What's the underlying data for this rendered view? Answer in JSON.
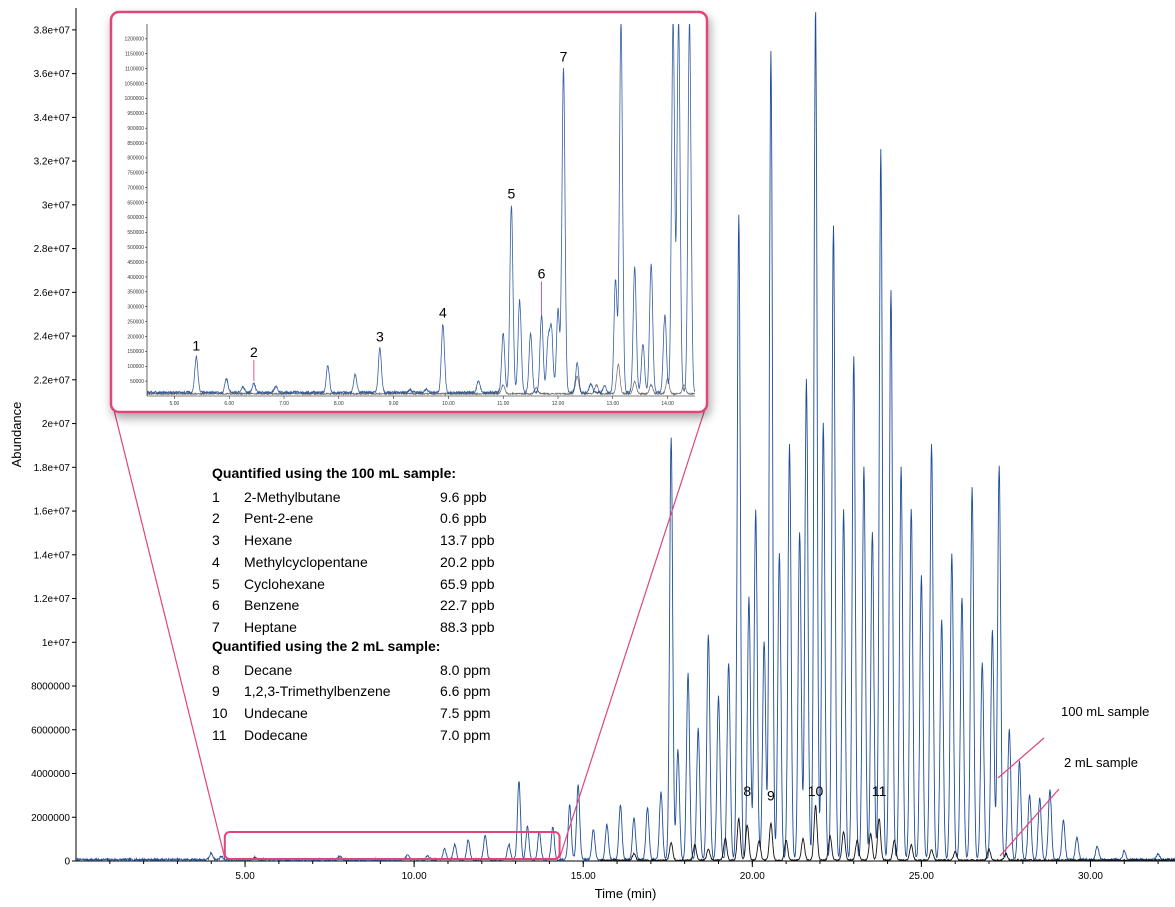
{
  "colors": {
    "sample_100mL": "#1f4e99",
    "sample_2mL": "#111111",
    "highlight": "#e0457b",
    "inset_series_b": "#444444"
  },
  "chart_data": {
    "type": "line",
    "xlabel": "Time (min)",
    "ylabel": "Abundance",
    "xlim": [
      0,
      32.5
    ],
    "ylim": [
      0,
      39000000
    ],
    "x_ticks": [
      5,
      10,
      15,
      20,
      25,
      30
    ],
    "x_tick_labels": [
      "5.00",
      "10.00",
      "15.00",
      "20.00",
      "25.00",
      "30.00"
    ],
    "y_ticks": [
      0,
      2000000,
      4000000,
      6000000,
      8000000,
      10000000,
      12000000,
      14000000,
      16000000,
      18000000,
      20000000,
      22000000,
      24000000,
      26000000,
      28000000,
      30000000,
      32000000,
      34000000,
      36000000,
      38000000
    ],
    "y_tick_labels": [
      "0",
      "2000000",
      "4000000",
      "6000000",
      "8000000",
      "1e+07",
      "1.2e+07",
      "1.4e+07",
      "1.6e+07",
      "1.8e+07",
      "2e+07",
      "2.2e+07",
      "2.4e+07",
      "2.6e+07",
      "2.8e+07",
      "3e+07",
      "3.2e+07",
      "3.4e+07",
      "3.6e+07",
      "3.8e+07"
    ],
    "series": [
      {
        "name": "100 mL sample",
        "peaks": [
          [
            4.0,
            300000
          ],
          [
            4.3,
            150000
          ],
          [
            5.3,
            120000
          ],
          [
            7.8,
            160000
          ],
          [
            9.8,
            200000
          ],
          [
            10.4,
            180000
          ],
          [
            10.9,
            500000
          ],
          [
            11.2,
            700000
          ],
          [
            11.6,
            900000
          ],
          [
            12.1,
            1100000
          ],
          [
            12.8,
            700000
          ],
          [
            13.1,
            3600000
          ],
          [
            13.35,
            1500000
          ],
          [
            13.7,
            1300000
          ],
          [
            14.1,
            1500000
          ],
          [
            14.6,
            2500000
          ],
          [
            14.85,
            3400000
          ],
          [
            15.3,
            1400000
          ],
          [
            15.7,
            1600000
          ],
          [
            16.1,
            2500000
          ],
          [
            16.5,
            1900000
          ],
          [
            16.9,
            2400000
          ],
          [
            17.3,
            3100000
          ],
          [
            17.6,
            19300000
          ],
          [
            17.8,
            5000000
          ],
          [
            18.1,
            8500000
          ],
          [
            18.4,
            6000000
          ],
          [
            18.7,
            10300000
          ],
          [
            19.0,
            7500000
          ],
          [
            19.3,
            9000000
          ],
          [
            19.6,
            29500000
          ],
          [
            19.9,
            12000000
          ],
          [
            20.1,
            16000000
          ],
          [
            20.35,
            10000000
          ],
          [
            20.55,
            37000000
          ],
          [
            20.8,
            14000000
          ],
          [
            21.1,
            19000000
          ],
          [
            21.4,
            15000000
          ],
          [
            21.6,
            22000000
          ],
          [
            21.87,
            39000000
          ],
          [
            22.1,
            20000000
          ],
          [
            22.4,
            29000000
          ],
          [
            22.7,
            16000000
          ],
          [
            23.0,
            23000000
          ],
          [
            23.3,
            18000000
          ],
          [
            23.55,
            15000000
          ],
          [
            23.8,
            32500000
          ],
          [
            24.1,
            26000000
          ],
          [
            24.4,
            18000000
          ],
          [
            24.7,
            16000000
          ],
          [
            25.0,
            13000000
          ],
          [
            25.3,
            19000000
          ],
          [
            25.6,
            11000000
          ],
          [
            25.9,
            14000000
          ],
          [
            26.2,
            12000000
          ],
          [
            26.5,
            17000000
          ],
          [
            26.8,
            9000000
          ],
          [
            27.1,
            10500000
          ],
          [
            27.3,
            18000000
          ],
          [
            27.6,
            6000000
          ],
          [
            27.9,
            4500000
          ],
          [
            28.2,
            3000000
          ],
          [
            28.5,
            2800000
          ],
          [
            28.8,
            3200000
          ],
          [
            29.2,
            1800000
          ],
          [
            29.6,
            1000000
          ],
          [
            30.2,
            600000
          ],
          [
            31.0,
            400000
          ],
          [
            32.0,
            250000
          ]
        ]
      },
      {
        "name": "2 mL sample",
        "peaks": [
          [
            16.5,
            300000
          ],
          [
            17.6,
            800000
          ],
          [
            18.3,
            700000
          ],
          [
            18.7,
            500000
          ],
          [
            19.2,
            1000000
          ],
          [
            19.6,
            1900000
          ],
          [
            19.85,
            1600000
          ],
          [
            20.2,
            900000
          ],
          [
            20.55,
            1700000
          ],
          [
            21.0,
            900000
          ],
          [
            21.5,
            1000000
          ],
          [
            21.87,
            2500000
          ],
          [
            22.3,
            1100000
          ],
          [
            22.7,
            1300000
          ],
          [
            23.1,
            900000
          ],
          [
            23.5,
            1200000
          ],
          [
            23.75,
            1900000
          ],
          [
            24.2,
            900000
          ],
          [
            24.7,
            700000
          ],
          [
            25.3,
            500000
          ],
          [
            26.0,
            400000
          ],
          [
            27.0,
            500000
          ],
          [
            27.5,
            300000
          ]
        ]
      }
    ],
    "peak_labels": [
      {
        "label": "8",
        "x": 19.85,
        "y": 2600000
      },
      {
        "label": "9",
        "x": 20.55,
        "y": 2400000
      },
      {
        "label": "10",
        "x": 21.87,
        "y": 2600000
      },
      {
        "label": "11",
        "x": 23.75,
        "y": 2600000
      }
    ],
    "series_labels": [
      "100 mL sample",
      "2 mL sample"
    ],
    "zoom_region": {
      "x_range": [
        4.4,
        14.3
      ],
      "y_range": [
        0,
        1000000
      ]
    },
    "inset": {
      "xlim": [
        4.5,
        14.5
      ],
      "ylim": [
        0,
        1250000
      ],
      "x_ticks": [
        5,
        6,
        7,
        8,
        9,
        10,
        11,
        12,
        13,
        14
      ],
      "x_tick_labels": [
        "5.00",
        "6.00",
        "7.00",
        "8.00",
        "9.00",
        "10.00",
        "11.00",
        "12.00",
        "13.00",
        "14.00"
      ],
      "y_ticks": [
        50000,
        100000,
        150000,
        200000,
        250000,
        300000,
        350000,
        400000,
        450000,
        500000,
        550000,
        600000,
        650000,
        700000,
        750000,
        800000,
        850000,
        900000,
        950000,
        1000000,
        1050000,
        1100000,
        1150000,
        1200000
      ],
      "y_tick_labels": [
        "50000",
        "100000",
        "150000",
        "200000",
        "250000",
        "300000",
        "350000",
        "400000",
        "450000",
        "500000",
        "550000",
        "600000",
        "650000",
        "700000",
        "750000",
        "800000",
        "850000",
        "900000",
        "950000",
        "1000000",
        "1050000",
        "1100000",
        "1150000",
        "1200000"
      ],
      "series": [
        {
          "name": "100 mL sample",
          "peaks": [
            [
              5.4,
              120000
            ],
            [
              5.95,
              45000
            ],
            [
              6.25,
              20000
            ],
            [
              6.45,
              30000
            ],
            [
              6.85,
              20000
            ],
            [
              7.8,
              90000
            ],
            [
              8.3,
              60000
            ],
            [
              8.75,
              150000
            ],
            [
              9.3,
              10000
            ],
            [
              9.6,
              10000
            ],
            [
              9.9,
              230000
            ],
            [
              10.55,
              40000
            ],
            [
              11.0,
              200000
            ],
            [
              11.15,
              630000
            ],
            [
              11.3,
              310000
            ],
            [
              11.5,
              200000
            ],
            [
              11.7,
              260000
            ],
            [
              11.82,
              170000
            ],
            [
              11.88,
              210000
            ],
            [
              12.0,
              280000
            ],
            [
              12.1,
              1090000
            ],
            [
              12.35,
              100000
            ],
            [
              12.6,
              30000
            ],
            [
              12.85,
              20000
            ],
            [
              13.05,
              380000
            ],
            [
              13.15,
              1250000
            ],
            [
              13.4,
              420000
            ],
            [
              13.55,
              160000
            ],
            [
              13.7,
              430000
            ],
            [
              13.95,
              260000
            ],
            [
              14.1,
              1250000
            ],
            [
              14.2,
              1250000
            ],
            [
              14.4,
              1250000
            ]
          ]
        },
        {
          "name": "2 mL sample",
          "peaks": [
            [
              11.0,
              30000
            ],
            [
              11.6,
              20000
            ],
            [
              12.35,
              60000
            ],
            [
              12.7,
              30000
            ],
            [
              13.1,
              100000
            ],
            [
              13.4,
              40000
            ],
            [
              13.7,
              30000
            ],
            [
              14.0,
              50000
            ],
            [
              14.3,
              30000
            ]
          ]
        }
      ],
      "peak_labels": [
        {
          "label": "1",
          "x": 5.4
        },
        {
          "label": "2",
          "x": 6.45
        },
        {
          "label": "3",
          "x": 8.75
        },
        {
          "label": "4",
          "x": 9.9
        },
        {
          "label": "5",
          "x": 11.15
        },
        {
          "label": "6",
          "x": 11.7
        },
        {
          "label": "7",
          "x": 12.1
        }
      ]
    }
  },
  "compound_table": {
    "group1_title": "Quantified using the 100 mL sample:",
    "group1": [
      {
        "num": "1",
        "name": "2-Methylbutane",
        "value": "9.6 ppb"
      },
      {
        "num": "2",
        "name": "Pent-2-ene",
        "value": "0.6 ppb"
      },
      {
        "num": "3",
        "name": "Hexane",
        "value": "13.7 ppb"
      },
      {
        "num": "4",
        "name": "Methylcyclopentane",
        "value": "20.2 ppb"
      },
      {
        "num": "5",
        "name": "Cyclohexane",
        "value": "65.9 ppb"
      },
      {
        "num": "6",
        "name": "Benzene",
        "value": "22.7 ppb"
      },
      {
        "num": "7",
        "name": "Heptane",
        "value": "88.3 ppb"
      }
    ],
    "group2_title": "Quantified using the 2 mL sample:",
    "group2": [
      {
        "num": "8",
        "name": "Decane",
        "value": "8.0 ppm"
      },
      {
        "num": "9",
        "name": "1,2,3-Trimethylbenzene",
        "value": "6.6 ppm"
      },
      {
        "num": "10",
        "name": "Undecane",
        "value": "7.5 ppm"
      },
      {
        "num": "11",
        "name": "Dodecane",
        "value": "7.0 ppm"
      }
    ]
  }
}
